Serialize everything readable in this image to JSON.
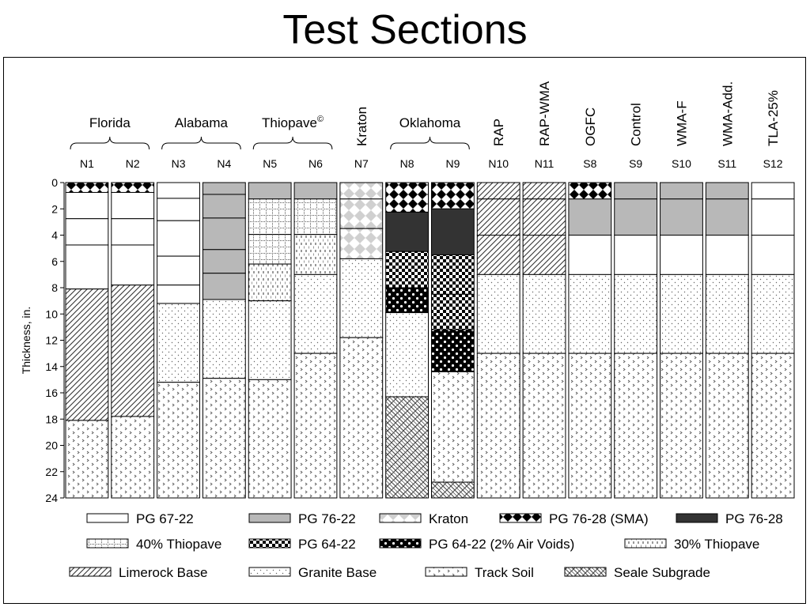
{
  "page_title": "Test Sections",
  "chart_data": {
    "type": "bar",
    "ylabel": "Thickness, in.",
    "ylim": [
      0,
      24
    ],
    "yticks": [
      0,
      2,
      4,
      6,
      8,
      10,
      12,
      14,
      16,
      18,
      20,
      22,
      24
    ],
    "y_inverted": true,
    "stacked": true,
    "groups": [
      {
        "label": "Florida",
        "sections": [
          "N1",
          "N2"
        ]
      },
      {
        "label": "Alabama",
        "sections": [
          "N3",
          "N4"
        ]
      },
      {
        "label": "Thiopave",
        "superscript": "©",
        "sections": [
          "N5",
          "N6"
        ]
      },
      {
        "label": "Kraton",
        "sections": [
          "N7"
        ]
      },
      {
        "label": "Oklahoma",
        "sections": [
          "N8",
          "N9"
        ]
      },
      {
        "label": "RAP",
        "sections": [
          "N10"
        ]
      },
      {
        "label": "RAP-WMA",
        "sections": [
          "N11"
        ]
      },
      {
        "label": "OGFC",
        "sections": [
          "S8"
        ]
      },
      {
        "label": "Control",
        "sections": [
          "S9"
        ]
      },
      {
        "label": "WMA-F",
        "sections": [
          "S10"
        ]
      },
      {
        "label": "WMA-Add.",
        "sections": [
          "S11"
        ]
      },
      {
        "label": "TLA-25%",
        "sections": [
          "S12"
        ]
      }
    ],
    "materials": [
      {
        "key": "pg6722",
        "label": "PG 67-22",
        "color": "#ffffff"
      },
      {
        "key": "pg7622",
        "label": "PG 76-22",
        "color": "#b8b8b8"
      },
      {
        "key": "kraton",
        "label": "Kraton",
        "color": "#d0d0d0"
      },
      {
        "key": "sma",
        "label": "PG 76-28 (SMA)",
        "color": "#000000"
      },
      {
        "key": "pg7628",
        "label": "PG 76-28",
        "color": "#333333"
      },
      {
        "key": "thio40",
        "label": "40% Thiopave",
        "color": "#ffffff"
      },
      {
        "key": "pg6422",
        "label": "PG 64-22",
        "color": "#000000"
      },
      {
        "key": "pg6422av",
        "label": "PG 64-22 (2% Air Voids)",
        "color": "#000000"
      },
      {
        "key": "thio30",
        "label": "30% Thiopave",
        "color": "#ffffff"
      },
      {
        "key": "limerock",
        "label": "Limerock Base",
        "color": "#ffffff"
      },
      {
        "key": "granite",
        "label": "Granite Base",
        "color": "#ffffff"
      },
      {
        "key": "track",
        "label": "Track Soil",
        "color": "#ffffff"
      },
      {
        "key": "seale",
        "label": "Seale Subgrade",
        "color": "#ffffff"
      }
    ],
    "sections": [
      {
        "name": "N1",
        "layers": [
          {
            "m": "sma",
            "from": 0,
            "to": 0.75
          },
          {
            "m": "pg6722",
            "from": 0.75,
            "to": 2.75
          },
          {
            "m": "pg6722",
            "from": 2.75,
            "to": 4.75
          },
          {
            "m": "pg6722",
            "from": 4.75,
            "to": 8.1
          },
          {
            "m": "limerock",
            "from": 8.1,
            "to": 18.1
          },
          {
            "m": "track",
            "from": 18.1,
            "to": 24
          }
        ]
      },
      {
        "name": "N2",
        "layers": [
          {
            "m": "sma",
            "from": 0,
            "to": 0.75
          },
          {
            "m": "pg6722",
            "from": 0.75,
            "to": 2.75
          },
          {
            "m": "pg6722",
            "from": 2.75,
            "to": 4.75
          },
          {
            "m": "pg6722",
            "from": 4.75,
            "to": 7.8
          },
          {
            "m": "limerock",
            "from": 7.8,
            "to": 17.8
          },
          {
            "m": "track",
            "from": 17.8,
            "to": 24
          }
        ]
      },
      {
        "name": "N3",
        "layers": [
          {
            "m": "pg6722",
            "from": 0,
            "to": 1.2
          },
          {
            "m": "pg6722",
            "from": 1.2,
            "to": 2.9
          },
          {
            "m": "pg6722",
            "from": 2.9,
            "to": 5.6
          },
          {
            "m": "pg6722",
            "from": 5.6,
            "to": 7.8
          },
          {
            "m": "pg6722",
            "from": 7.8,
            "to": 9.2
          },
          {
            "m": "granite",
            "from": 9.2,
            "to": 15.2
          },
          {
            "m": "track",
            "from": 15.2,
            "to": 24
          }
        ]
      },
      {
        "name": "N4",
        "layers": [
          {
            "m": "pg7622",
            "from": 0,
            "to": 0.9
          },
          {
            "m": "pg7622",
            "from": 0.9,
            "to": 2.7
          },
          {
            "m": "pg7622",
            "from": 2.7,
            "to": 5.1
          },
          {
            "m": "pg7622",
            "from": 5.1,
            "to": 6.9
          },
          {
            "m": "pg7622",
            "from": 6.9,
            "to": 8.9
          },
          {
            "m": "granite",
            "from": 8.9,
            "to": 14.9
          },
          {
            "m": "track",
            "from": 14.9,
            "to": 24
          }
        ]
      },
      {
        "name": "N5",
        "layers": [
          {
            "m": "pg7622",
            "from": 0,
            "to": 1.25
          },
          {
            "m": "thio40",
            "from": 1.25,
            "to": 3.95
          },
          {
            "m": "thio40",
            "from": 3.95,
            "to": 6.2
          },
          {
            "m": "thio30",
            "from": 6.2,
            "to": 9.0
          },
          {
            "m": "granite",
            "from": 9.0,
            "to": 15.0
          },
          {
            "m": "track",
            "from": 15.0,
            "to": 24
          }
        ]
      },
      {
        "name": "N6",
        "layers": [
          {
            "m": "pg7622",
            "from": 0,
            "to": 1.25
          },
          {
            "m": "thio40",
            "from": 1.25,
            "to": 3.95
          },
          {
            "m": "thio30",
            "from": 3.95,
            "to": 7.0
          },
          {
            "m": "granite",
            "from": 7.0,
            "to": 13.0
          },
          {
            "m": "track",
            "from": 13.0,
            "to": 24
          }
        ]
      },
      {
        "name": "N7",
        "layers": [
          {
            "m": "kraton",
            "from": 0,
            "to": 1.25
          },
          {
            "m": "kraton",
            "from": 1.25,
            "to": 3.5
          },
          {
            "m": "kraton",
            "from": 3.5,
            "to": 5.8
          },
          {
            "m": "granite",
            "from": 5.8,
            "to": 11.8
          },
          {
            "m": "track",
            "from": 11.8,
            "to": 24
          }
        ]
      },
      {
        "name": "N8",
        "layers": [
          {
            "m": "sma",
            "from": 0,
            "to": 2.25
          },
          {
            "m": "pg7628",
            "from": 2.25,
            "to": 5.25
          },
          {
            "m": "pg6422",
            "from": 5.25,
            "to": 8.0
          },
          {
            "m": "pg6422av",
            "from": 8.0,
            "to": 9.9
          },
          {
            "m": "granite",
            "from": 9.9,
            "to": 16.3
          },
          {
            "m": "seale",
            "from": 16.3,
            "to": 24
          }
        ]
      },
      {
        "name": "N9",
        "layers": [
          {
            "m": "sma",
            "from": 0,
            "to": 2.0
          },
          {
            "m": "pg7628",
            "from": 2.0,
            "to": 5.5
          },
          {
            "m": "pg6422",
            "from": 5.5,
            "to": 8.5
          },
          {
            "m": "pg6422",
            "from": 8.5,
            "to": 11.2
          },
          {
            "m": "pg6422av",
            "from": 11.2,
            "to": 14.4
          },
          {
            "m": "track",
            "from": 14.4,
            "to": 22.8
          },
          {
            "m": "seale",
            "from": 22.8,
            "to": 24
          }
        ]
      },
      {
        "name": "N10",
        "layers": [
          {
            "m": "limerock",
            "from": 0,
            "to": 1.25
          },
          {
            "m": "limerock",
            "from": 1.25,
            "to": 4.0
          },
          {
            "m": "limerock",
            "from": 4.0,
            "to": 7.0
          },
          {
            "m": "granite",
            "from": 7.0,
            "to": 13.0
          },
          {
            "m": "track",
            "from": 13.0,
            "to": 24
          }
        ]
      },
      {
        "name": "N11",
        "layers": [
          {
            "m": "limerock",
            "from": 0,
            "to": 1.25
          },
          {
            "m": "limerock",
            "from": 1.25,
            "to": 4.0
          },
          {
            "m": "limerock",
            "from": 4.0,
            "to": 7.0
          },
          {
            "m": "granite",
            "from": 7.0,
            "to": 13.0
          },
          {
            "m": "track",
            "from": 13.0,
            "to": 24
          }
        ]
      },
      {
        "name": "S8",
        "layers": [
          {
            "m": "sma",
            "from": 0,
            "to": 1.25
          },
          {
            "m": "pg7622",
            "from": 1.25,
            "to": 4.0
          },
          {
            "m": "pg6722",
            "from": 4.0,
            "to": 7.0
          },
          {
            "m": "granite",
            "from": 7.0,
            "to": 13.0
          },
          {
            "m": "track",
            "from": 13.0,
            "to": 24
          }
        ]
      },
      {
        "name": "S9",
        "layers": [
          {
            "m": "pg7622",
            "from": 0,
            "to": 1.25
          },
          {
            "m": "pg7622",
            "from": 1.25,
            "to": 4.0
          },
          {
            "m": "pg6722",
            "from": 4.0,
            "to": 7.0
          },
          {
            "m": "granite",
            "from": 7.0,
            "to": 13.0
          },
          {
            "m": "track",
            "from": 13.0,
            "to": 24
          }
        ]
      },
      {
        "name": "S10",
        "layers": [
          {
            "m": "pg7622",
            "from": 0,
            "to": 1.25
          },
          {
            "m": "pg7622",
            "from": 1.25,
            "to": 4.0
          },
          {
            "m": "pg6722",
            "from": 4.0,
            "to": 7.0
          },
          {
            "m": "granite",
            "from": 7.0,
            "to": 13.0
          },
          {
            "m": "track",
            "from": 13.0,
            "to": 24
          }
        ]
      },
      {
        "name": "S11",
        "layers": [
          {
            "m": "pg7622",
            "from": 0,
            "to": 1.25
          },
          {
            "m": "pg7622",
            "from": 1.25,
            "to": 4.0
          },
          {
            "m": "pg6722",
            "from": 4.0,
            "to": 7.0
          },
          {
            "m": "granite",
            "from": 7.0,
            "to": 13.0
          },
          {
            "m": "track",
            "from": 13.0,
            "to": 24
          }
        ]
      },
      {
        "name": "S12",
        "layers": [
          {
            "m": "pg6722",
            "from": 0,
            "to": 1.25
          },
          {
            "m": "pg6722",
            "from": 1.25,
            "to": 4.0
          },
          {
            "m": "pg6722",
            "from": 4.0,
            "to": 7.0
          },
          {
            "m": "granite",
            "from": 7.0,
            "to": 13.0
          },
          {
            "m": "track",
            "from": 13.0,
            "to": 24
          }
        ]
      }
    ],
    "legend_rows": [
      [
        "pg6722",
        "pg7622",
        "kraton",
        "sma",
        "pg7628"
      ],
      [
        "thio40",
        "pg6422",
        "pg6422av",
        "thio30"
      ],
      [
        "limerock",
        "granite",
        "track",
        "seale"
      ]
    ]
  }
}
